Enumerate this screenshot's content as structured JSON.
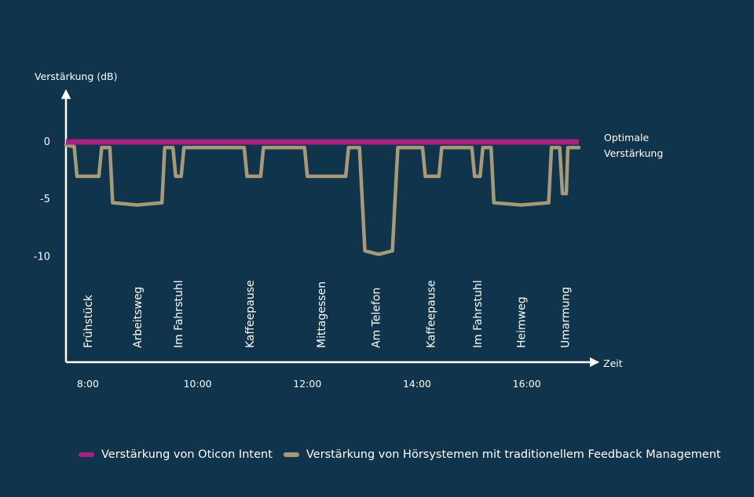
{
  "chart_data": {
    "type": "line",
    "ylabel": "Verstärkung (dB)",
    "xlabel": "Zeit",
    "x_unit": "hours",
    "xlim": [
      7.6,
      17.05
    ],
    "ylim": [
      -19.2,
      0
    ],
    "yticks": [
      {
        "value": 0,
        "label": "0"
      },
      {
        "value": -5,
        "label": "-5"
      },
      {
        "value": -10,
        "label": "-10"
      }
    ],
    "xticks": [
      {
        "value": 8,
        "label": "8:00"
      },
      {
        "value": 10,
        "label": "10:00"
      },
      {
        "value": 12,
        "label": "12:00"
      },
      {
        "value": 14,
        "label": "14:00"
      },
      {
        "value": 16,
        "label": "16:00"
      }
    ],
    "events": [
      {
        "label": "Frühstück",
        "x": 8.0
      },
      {
        "label": "Arbeitsweg",
        "x": 8.9
      },
      {
        "label": "Im Fahrstuhl",
        "x": 9.65
      },
      {
        "label": "Kaffeepause",
        "x": 10.95
      },
      {
        "label": "Mittagessen",
        "x": 12.25
      },
      {
        "label": "Am Telefon",
        "x": 13.25
      },
      {
        "label": "Kaffeepause",
        "x": 14.25
      },
      {
        "label": "Im Fahrstuhl",
        "x": 15.1
      },
      {
        "label": "Heimweg",
        "x": 15.9
      },
      {
        "label": "Umarmung",
        "x": 16.7
      }
    ],
    "annotation": "Optimale Verstärkung",
    "annotation_lines": [
      "Optimale",
      "Verstärkung"
    ],
    "series": [
      {
        "name": "Verstärkung von Oticon Intent",
        "color": "#a3237f",
        "points": [
          [
            7.6,
            0
          ],
          [
            16.95,
            0
          ]
        ]
      },
      {
        "name": "Verstärkung von Hörsystemen mit traditionellem Feedback Management",
        "color": "#a89a78",
        "points": [
          [
            7.6,
            -0.3
          ],
          [
            7.75,
            -0.4
          ],
          [
            7.8,
            -3.0
          ],
          [
            8.2,
            -3.0
          ],
          [
            8.25,
            -0.5
          ],
          [
            8.4,
            -0.5
          ],
          [
            8.45,
            -5.3
          ],
          [
            8.9,
            -5.5
          ],
          [
            9.35,
            -5.3
          ],
          [
            9.4,
            -0.5
          ],
          [
            9.55,
            -0.5
          ],
          [
            9.6,
            -3.0
          ],
          [
            9.7,
            -3.0
          ],
          [
            9.75,
            -0.5
          ],
          [
            10.85,
            -0.5
          ],
          [
            10.9,
            -3.0
          ],
          [
            11.15,
            -3.0
          ],
          [
            11.2,
            -0.5
          ],
          [
            11.95,
            -0.5
          ],
          [
            12.0,
            -3.0
          ],
          [
            12.7,
            -3.0
          ],
          [
            12.75,
            -0.5
          ],
          [
            12.95,
            -0.5
          ],
          [
            13.05,
            -9.5
          ],
          [
            13.3,
            -9.8
          ],
          [
            13.55,
            -9.5
          ],
          [
            13.65,
            -0.5
          ],
          [
            14.1,
            -0.5
          ],
          [
            14.15,
            -3.0
          ],
          [
            14.4,
            -3.0
          ],
          [
            14.45,
            -0.5
          ],
          [
            15.0,
            -0.5
          ],
          [
            15.05,
            -3.0
          ],
          [
            15.15,
            -3.0
          ],
          [
            15.2,
            -0.5
          ],
          [
            15.35,
            -0.5
          ],
          [
            15.4,
            -5.3
          ],
          [
            15.9,
            -5.5
          ],
          [
            16.4,
            -5.3
          ],
          [
            16.45,
            -0.5
          ],
          [
            16.6,
            -0.5
          ],
          [
            16.65,
            -4.5
          ],
          [
            16.72,
            -4.5
          ],
          [
            16.75,
            -0.5
          ],
          [
            16.95,
            -0.5
          ]
        ]
      }
    ],
    "colors": {
      "background": "#0f344b",
      "axis": "#ffffff"
    }
  },
  "legend": {
    "item1": "Verstärkung von Oticon Intent",
    "item2": "Verstärkung von Hörsystemen mit traditionellem Feedback Management"
  }
}
